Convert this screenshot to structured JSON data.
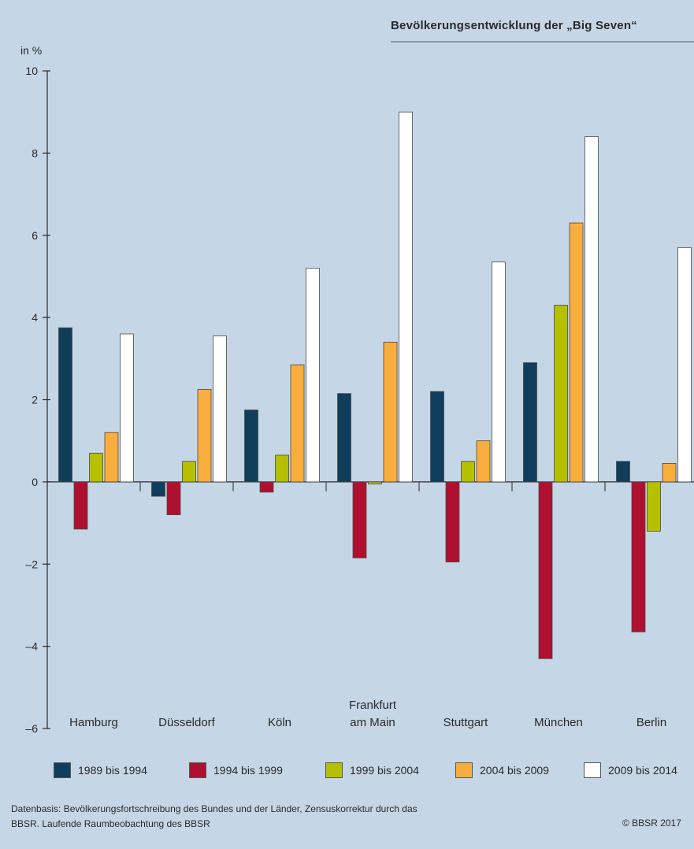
{
  "chart_data": {
    "type": "bar",
    "title": "Bevölkerungsentwicklung der „Big Seven“",
    "ylabel": "in %",
    "ylim": [
      -6,
      10
    ],
    "yticks": [
      -6,
      -4,
      -2,
      0,
      2,
      4,
      6,
      8,
      10
    ],
    "ytick_labels": [
      "–6",
      "–4",
      "–2",
      "0",
      "2",
      "4",
      "6",
      "8",
      "10"
    ],
    "categories": [
      "Hamburg",
      "Düsseldorf",
      "Köln",
      "Frankfurt am Main",
      "Stuttgart",
      "München",
      "Berlin"
    ],
    "category_labels": [
      [
        "Hamburg"
      ],
      [
        "Düsseldorf"
      ],
      [
        "Köln"
      ],
      [
        "Frankfurt",
        "am Main"
      ],
      [
        "Stuttgart"
      ],
      [
        "München"
      ],
      [
        "Berlin"
      ]
    ],
    "series": [
      {
        "name": "1989 bis 1994",
        "color": "#0f3d5c",
        "values": [
          3.75,
          -0.35,
          1.75,
          2.15,
          2.2,
          2.9,
          0.5
        ]
      },
      {
        "name": "1994 bis 1999",
        "color": "#b01030",
        "values": [
          -1.15,
          -0.8,
          -0.25,
          -1.85,
          -1.95,
          -4.3,
          -3.65
        ]
      },
      {
        "name": "1999 bis 2004",
        "color": "#b5c000",
        "values": [
          0.7,
          0.5,
          0.65,
          -0.05,
          0.5,
          4.3,
          -1.2
        ]
      },
      {
        "name": "2004 bis 2009",
        "color": "#f9ad3c",
        "values": [
          1.2,
          2.25,
          2.85,
          3.4,
          1.0,
          6.3,
          0.45
        ]
      },
      {
        "name": "2009 bis 2014",
        "color": "#ffffff",
        "values": [
          3.6,
          3.55,
          5.2,
          9.0,
          5.35,
          8.4,
          5.7
        ]
      }
    ],
    "legend_position": "bottom",
    "grid": false
  },
  "source_lines": [
    "Datenbasis: Bevölkerungsfortschreibung des Bundes und der Länder, Zensuskorrektur durch das",
    "BBSR. Laufende Raumbeobachtung des BBSR"
  ],
  "copyright": "© BBSR 2017"
}
